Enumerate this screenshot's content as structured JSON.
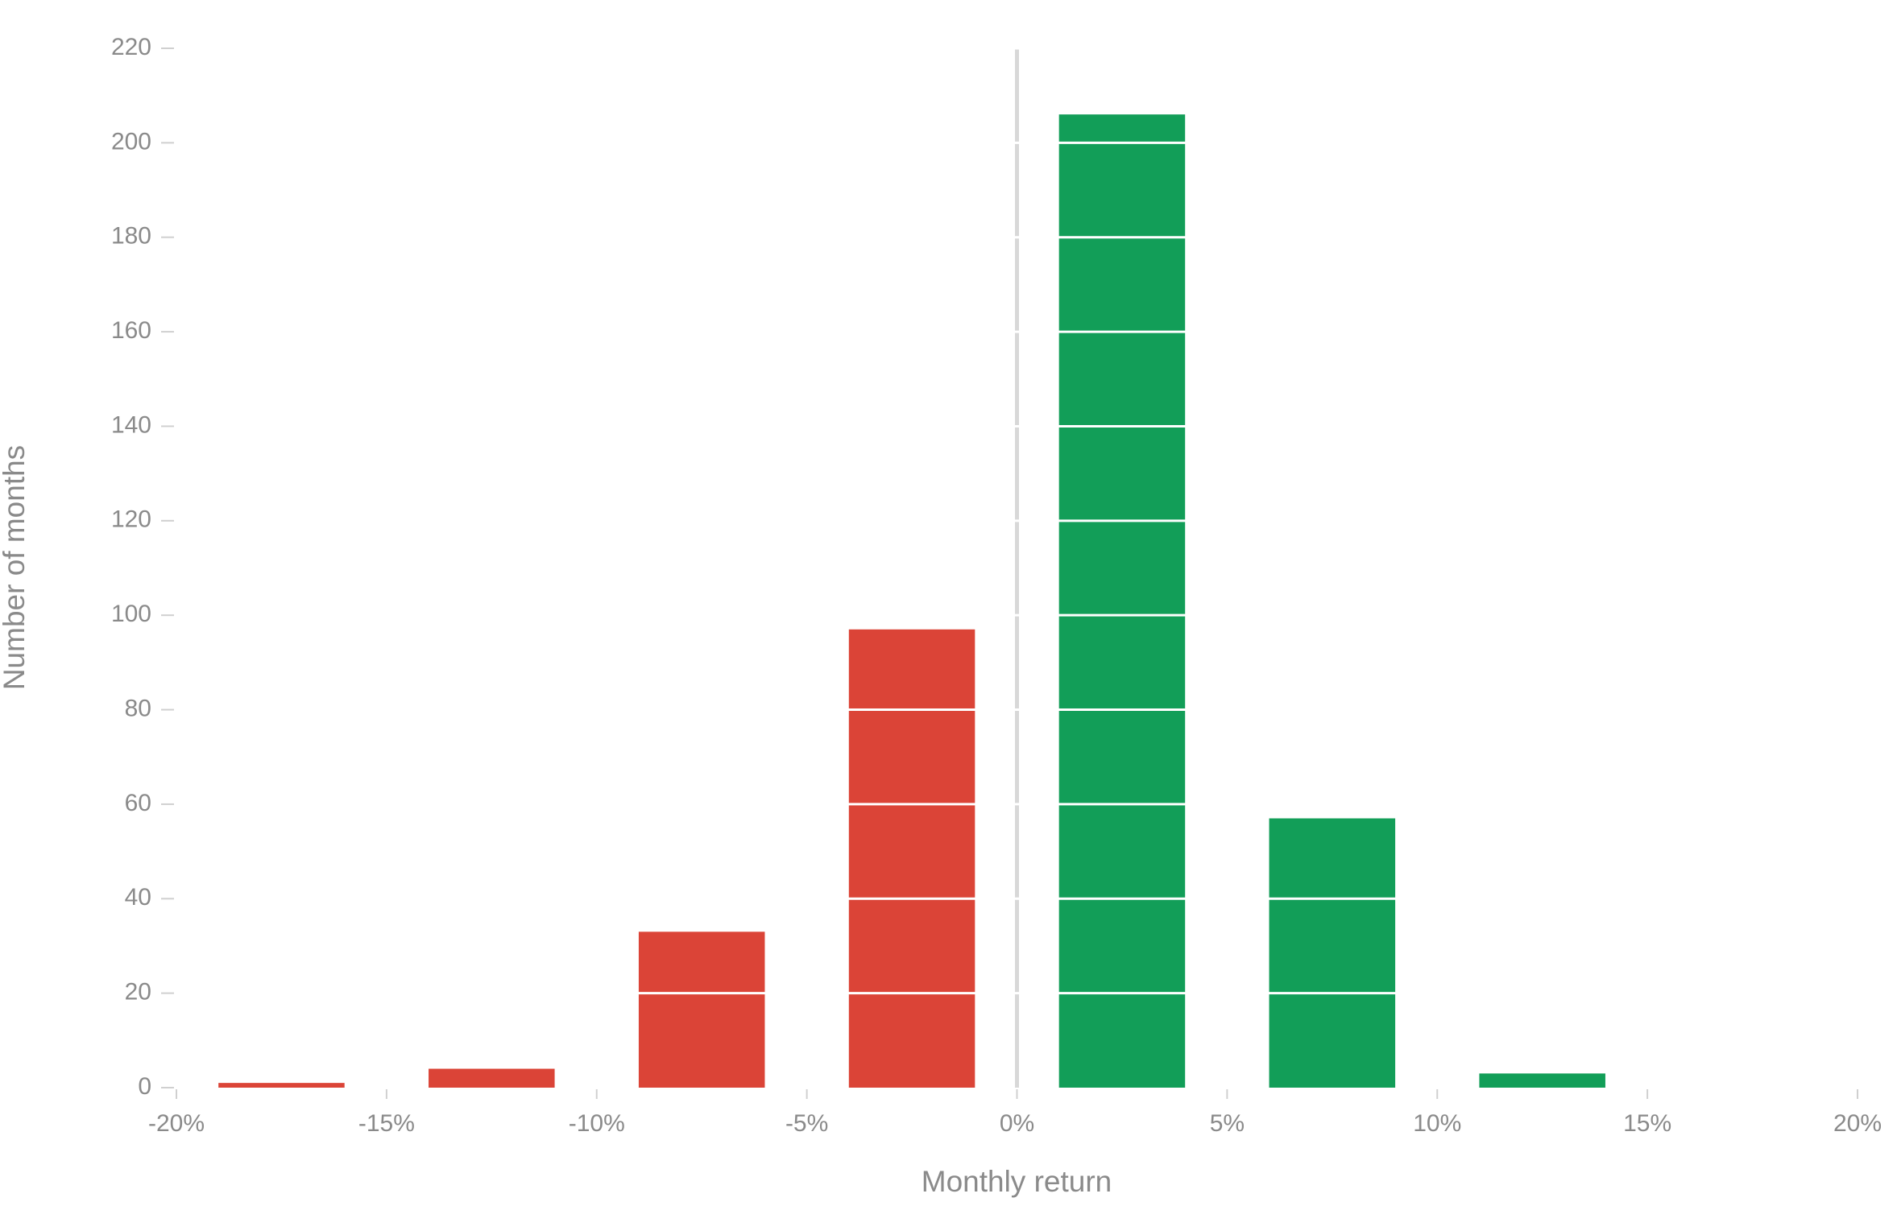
{
  "chart_data": {
    "type": "histogram",
    "x_label": "Monthly return",
    "y_label": "Number of months",
    "bins": [
      -20,
      -15,
      -10,
      -5,
      0,
      5,
      10,
      15,
      20
    ],
    "values": [
      1,
      4,
      33,
      97,
      206,
      57,
      3,
      0
    ],
    "colors": [
      "#db4437",
      "#db4437",
      "#db4437",
      "#db4437",
      "#129e58",
      "#129e58",
      "#129e58",
      "#129e58"
    ],
    "xlim": [
      -20,
      20
    ],
    "xticks": [
      {
        "value": -20,
        "label": "-20%"
      },
      {
        "value": -15,
        "label": "-15%"
      },
      {
        "value": -10,
        "label": "-10%"
      },
      {
        "value": -5,
        "label": "-5%"
      },
      {
        "value": 0,
        "label": "0%"
      },
      {
        "value": 5,
        "label": "5%"
      },
      {
        "value": 10,
        "label": "10%"
      },
      {
        "value": 15,
        "label": "15%"
      },
      {
        "value": 20,
        "label": "20%"
      }
    ],
    "ylim": [
      0,
      220
    ],
    "yticks": [
      0,
      20,
      40,
      60,
      80,
      100,
      120,
      140,
      160,
      180,
      200,
      220
    ],
    "grid": true
  }
}
